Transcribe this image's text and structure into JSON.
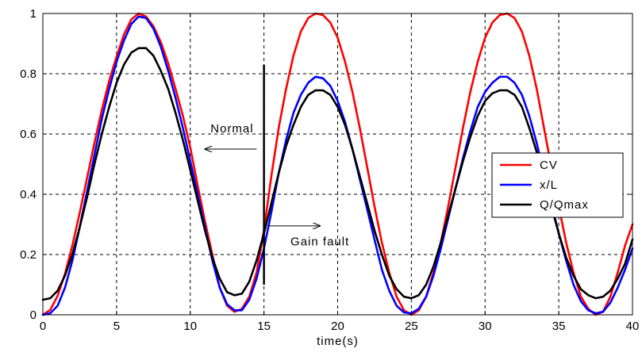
{
  "chart_data": {
    "type": "line",
    "title": "",
    "xlabel": "time(s)",
    "ylabel": "",
    "xlim": [
      0,
      40
    ],
    "ylim": [
      0,
      1
    ],
    "xticks": [
      0,
      5,
      10,
      15,
      20,
      25,
      30,
      35,
      40
    ],
    "yticks": [
      0,
      0.2,
      0.4,
      0.6,
      0.8,
      1
    ],
    "ytick_labels": [
      "0",
      "0.2",
      "0.4",
      "0.6",
      "0.8",
      "1"
    ],
    "grid": true,
    "legend_position": "right",
    "series": [
      {
        "name": "CV",
        "color": "#ff0000",
        "x": [
          0,
          0.5,
          1,
          1.5,
          2,
          2.5,
          3,
          3.5,
          4,
          4.5,
          5,
          5.5,
          6,
          6.5,
          7,
          7.5,
          8,
          8.5,
          9,
          9.5,
          10,
          10.5,
          11,
          11.5,
          12,
          12.5,
          13,
          13.5,
          14,
          14.5,
          15,
          15.5,
          16,
          16.5,
          17,
          17.5,
          18,
          18.5,
          19,
          19.5,
          20,
          20.5,
          21,
          21.5,
          22,
          22.5,
          23,
          23.5,
          24,
          24.5,
          25,
          25.5,
          26,
          26.5,
          27,
          27.5,
          28,
          28.5,
          29,
          29.5,
          30,
          30.5,
          31,
          31.5,
          32,
          32.5,
          33,
          33.5,
          34,
          34.5,
          35,
          35.5,
          36,
          36.5,
          37,
          37.5,
          38,
          38.5,
          39,
          39.5,
          40
        ],
        "y": [
          0,
          0.016,
          0.063,
          0.136,
          0.23,
          0.338,
          0.454,
          0.57,
          0.68,
          0.777,
          0.857,
          0.93,
          0.98,
          1.0,
          0.99,
          0.958,
          0.905,
          0.835,
          0.75,
          0.66,
          0.555,
          0.43,
          0.31,
          0.2,
          0.09,
          0.03,
          0.01,
          0.02,
          0.06,
          0.14,
          0.28,
          0.46,
          0.62,
          0.75,
          0.86,
          0.94,
          0.985,
          1.0,
          0.995,
          0.97,
          0.92,
          0.84,
          0.74,
          0.62,
          0.49,
          0.36,
          0.24,
          0.14,
          0.06,
          0.015,
          0.0,
          0.015,
          0.06,
          0.14,
          0.24,
          0.36,
          0.49,
          0.62,
          0.74,
          0.84,
          0.92,
          0.97,
          0.995,
          1.0,
          0.985,
          0.94,
          0.86,
          0.75,
          0.62,
          0.49,
          0.36,
          0.24,
          0.14,
          0.06,
          0.02,
          0.0,
          0.01,
          0.06,
          0.14,
          0.23,
          0.3
        ]
      },
      {
        "name": "x/L",
        "color": "#0000ff",
        "x": [
          0,
          0.5,
          1,
          1.5,
          2,
          2.5,
          3,
          3.5,
          4,
          4.5,
          5,
          5.5,
          6,
          6.5,
          7,
          7.5,
          8,
          8.5,
          9,
          9.5,
          10,
          10.5,
          11,
          11.5,
          12,
          12.5,
          13,
          13.5,
          14,
          14.5,
          15,
          15.5,
          16,
          16.5,
          17,
          17.5,
          18,
          18.5,
          19,
          19.5,
          20,
          20.5,
          21,
          21.5,
          22,
          22.5,
          23,
          23.5,
          24,
          24.5,
          25,
          25.5,
          26,
          26.5,
          27,
          27.5,
          28,
          28.5,
          29,
          29.5,
          30,
          30.5,
          31,
          31.5,
          32,
          32.5,
          33,
          33.5,
          34,
          34.5,
          35,
          35.5,
          36,
          36.5,
          37,
          37.5,
          38,
          38.5,
          39,
          39.5,
          40
        ],
        "y": [
          0,
          0.005,
          0.03,
          0.09,
          0.18,
          0.29,
          0.41,
          0.53,
          0.65,
          0.75,
          0.84,
          0.91,
          0.965,
          0.99,
          0.985,
          0.95,
          0.89,
          0.81,
          0.72,
          0.62,
          0.51,
          0.4,
          0.29,
          0.18,
          0.09,
          0.035,
          0.015,
          0.015,
          0.05,
          0.12,
          0.22,
          0.34,
          0.47,
          0.58,
          0.67,
          0.73,
          0.77,
          0.79,
          0.785,
          0.76,
          0.71,
          0.64,
          0.55,
          0.45,
          0.35,
          0.25,
          0.15,
          0.08,
          0.03,
          0.008,
          0.005,
          0.02,
          0.06,
          0.13,
          0.22,
          0.32,
          0.42,
          0.52,
          0.61,
          0.69,
          0.74,
          0.77,
          0.79,
          0.79,
          0.77,
          0.73,
          0.66,
          0.57,
          0.47,
          0.37,
          0.27,
          0.18,
          0.1,
          0.045,
          0.015,
          0.005,
          0.01,
          0.04,
          0.09,
          0.15,
          0.22
        ]
      },
      {
        "name": "Q/Qmax",
        "color": "#000000",
        "x": [
          0,
          0.5,
          1,
          1.5,
          2,
          2.5,
          3,
          3.5,
          4,
          4.5,
          5,
          5.5,
          6,
          6.5,
          7,
          7.5,
          8,
          8.5,
          9,
          9.5,
          10,
          10.5,
          11,
          11.5,
          12,
          12.5,
          13,
          13.5,
          14,
          14.5,
          15,
          15.5,
          16,
          16.5,
          17,
          17.5,
          18,
          18.5,
          19,
          19.5,
          20,
          20.5,
          21,
          21.5,
          22,
          22.5,
          23,
          23.5,
          24,
          24.5,
          25,
          25.5,
          26,
          26.5,
          27,
          27.5,
          28,
          28.5,
          29,
          29.5,
          30,
          30.5,
          31,
          31.5,
          32,
          32.5,
          33,
          33.5,
          34,
          34.5,
          35,
          35.5,
          36,
          36.5,
          37,
          37.5,
          38,
          38.5,
          39,
          39.5,
          40
        ],
        "y": [
          0.05,
          0.055,
          0.08,
          0.13,
          0.2,
          0.29,
          0.39,
          0.5,
          0.6,
          0.69,
          0.77,
          0.83,
          0.87,
          0.885,
          0.885,
          0.86,
          0.81,
          0.75,
          0.67,
          0.58,
          0.48,
          0.38,
          0.28,
          0.19,
          0.12,
          0.075,
          0.065,
          0.07,
          0.11,
          0.18,
          0.27,
          0.37,
          0.47,
          0.56,
          0.63,
          0.69,
          0.73,
          0.745,
          0.745,
          0.73,
          0.69,
          0.63,
          0.55,
          0.46,
          0.37,
          0.28,
          0.2,
          0.13,
          0.085,
          0.06,
          0.055,
          0.065,
          0.1,
          0.16,
          0.24,
          0.33,
          0.42,
          0.51,
          0.59,
          0.66,
          0.71,
          0.735,
          0.745,
          0.745,
          0.73,
          0.69,
          0.62,
          0.54,
          0.45,
          0.36,
          0.27,
          0.19,
          0.13,
          0.085,
          0.065,
          0.055,
          0.06,
          0.08,
          0.12,
          0.17,
          0.25
        ]
      }
    ],
    "annotations": [
      {
        "text": "Normal",
        "x": 14.3,
        "y": 0.605,
        "arrow_from_x": 14.5,
        "arrow_to_x": 11.0,
        "arrow_y": 0.55
      },
      {
        "text": "Gain fault",
        "x": 16.8,
        "y": 0.23,
        "arrow_from_x": 15.3,
        "arrow_to_x": 18.8,
        "arrow_y": 0.295
      }
    ],
    "marker_line": {
      "x": 15,
      "y_from": 0.1,
      "y_to": 0.83
    }
  }
}
